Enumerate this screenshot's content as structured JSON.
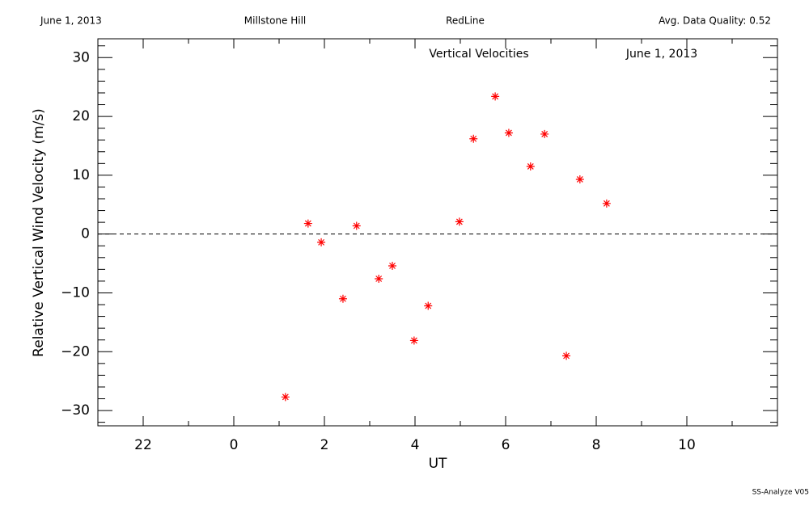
{
  "chart_data": {
    "type": "scatter",
    "header": [
      "June 1, 2013",
      "Millstone Hill",
      "RedLine",
      "Avg. Data Quality: 0.52"
    ],
    "title": "Vertical Velocities",
    "subtitle": "June 1, 2013",
    "xlabel": "UT",
    "ylabel": "Relative Vertical Wind Velocity (m/s)",
    "footer": "SS-Analyze V05",
    "xlim": [
      -3,
      12
    ],
    "ylim": [
      -32.6,
      33.2
    ],
    "xticks": [
      {
        "value": -2,
        "label": "22"
      },
      0,
      2,
      4,
      6,
      8,
      10
    ],
    "yticks": [
      {
        "value": -30,
        "label": "−30"
      },
      {
        "value": -20,
        "label": "−20"
      },
      {
        "value": -10,
        "label": "−10"
      },
      0,
      10,
      20,
      30
    ],
    "xminorticks": [
      -3,
      -1,
      1,
      3,
      5,
      7,
      9,
      11
    ],
    "yminorticks": [
      -32,
      -28,
      -26,
      -24,
      -22,
      -18,
      -16,
      -14,
      -12,
      -8,
      -6,
      -4,
      -2,
      2,
      4,
      6,
      8,
      12,
      14,
      16,
      18,
      22,
      24,
      26,
      28,
      32
    ],
    "hline": 0,
    "series": [
      {
        "color": "#ff0000",
        "x": [
          1.14,
          1.64,
          1.93,
          2.41,
          2.71,
          3.2,
          3.5,
          3.98,
          4.29,
          4.98,
          5.29,
          5.77,
          6.07,
          6.55,
          6.86,
          7.34,
          7.64,
          8.23
        ],
        "values": [
          -27.7,
          1.8,
          -1.4,
          -11.0,
          1.4,
          -7.6,
          -5.4,
          -18.1,
          -12.2,
          2.1,
          16.2,
          23.4,
          17.2,
          11.5,
          17.0,
          -20.7,
          9.3,
          5.2
        ]
      }
    ]
  }
}
